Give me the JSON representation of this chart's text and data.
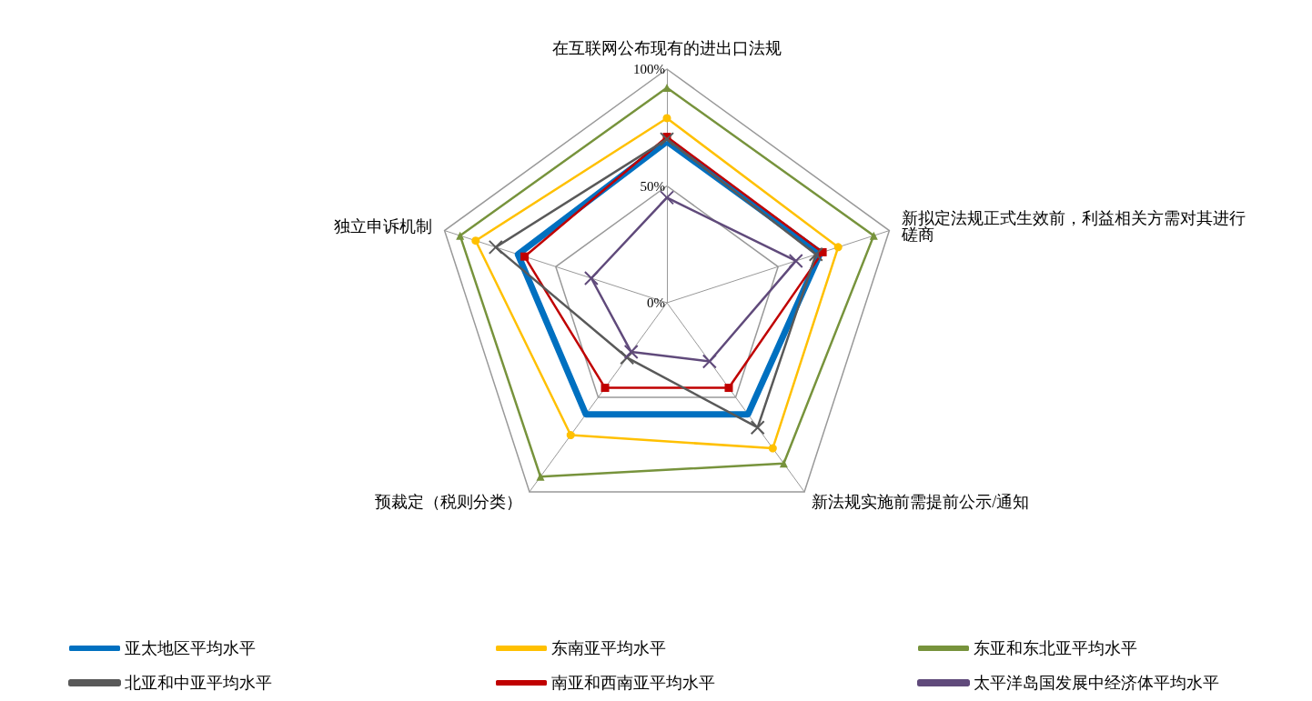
{
  "chart_data": {
    "type": "radar",
    "categories": [
      "在互联网公布现有的进出口法规",
      "新拟定法规正式生效前，利益相关方需对其进行磋商",
      "新法规实施前需提前公示/通知",
      "预裁定（税则分类）",
      "独立申诉机制"
    ],
    "ylim": [
      0,
      100
    ],
    "yticks": [
      {
        "value": 0,
        "label": "0%"
      },
      {
        "value": 50,
        "label": "50%"
      },
      {
        "value": 100,
        "label": "100%"
      }
    ],
    "grid": true,
    "legend": "bottom",
    "series": [
      {
        "name": "亚太地区平均水平",
        "color": "#0070c0",
        "marker": "none",
        "values": [
          69,
          69,
          59,
          59,
          67
        ]
      },
      {
        "name": "东南亚平均水平",
        "color": "#ffc000",
        "marker": "circle",
        "values": [
          79,
          77,
          77,
          70,
          86
        ]
      },
      {
        "name": "东亚和东北亚平均水平",
        "color": "#77933c",
        "marker": "triangle",
        "values": [
          92,
          93,
          85,
          92,
          93
        ]
      },
      {
        "name": "北亚和中亚平均水平",
        "color": "#595959",
        "marker": "cross",
        "values": [
          70,
          67,
          66,
          29,
          77
        ]
      },
      {
        "name": "南亚和西南亚平均水平",
        "color": "#c00000",
        "marker": "square",
        "values": [
          71,
          70,
          45,
          45,
          64
        ]
      },
      {
        "name": "太平洋岛国发展中经济体平均水平",
        "color": "#604a7b",
        "marker": "cross",
        "values": [
          45,
          58,
          31,
          26,
          34
        ]
      }
    ]
  }
}
